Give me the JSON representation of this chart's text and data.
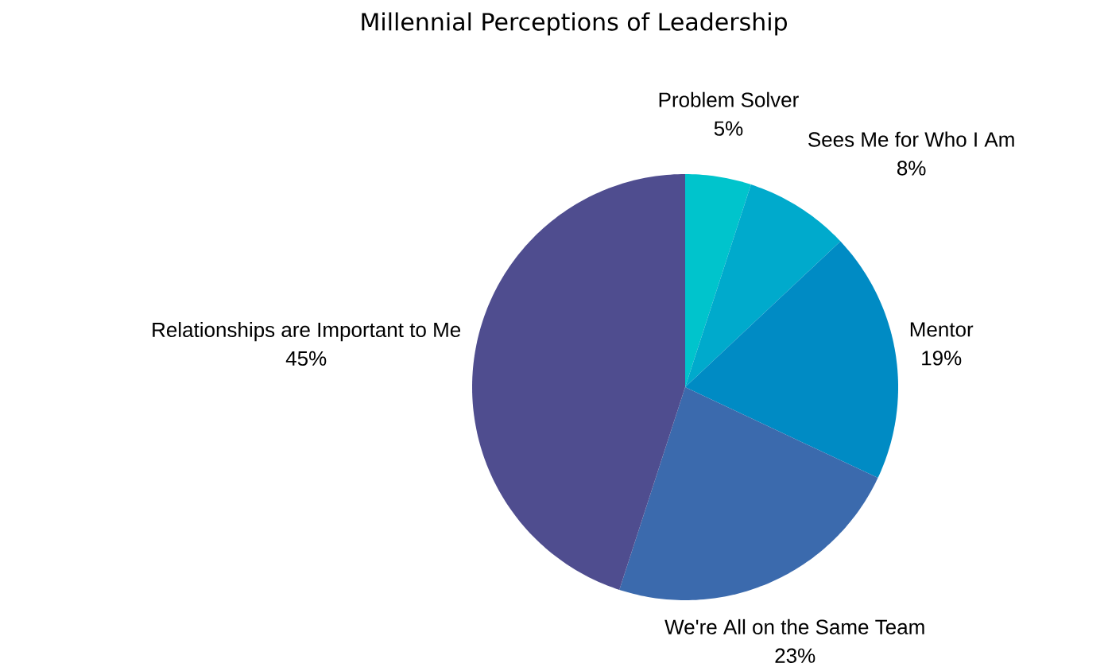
{
  "chart_data": {
    "type": "pie",
    "title": "Millennial Perceptions of Leadership",
    "categories": [
      "Problem Solver",
      "Sees Me for Who I Am",
      "Mentor",
      "We're All on the Same Team",
      "Relationships are Important to Me"
    ],
    "values": [
      5,
      8,
      19,
      23,
      45
    ],
    "colors": [
      "#00c4cc",
      "#00aacc",
      "#008bc4",
      "#3b6aad",
      "#4f4d8f"
    ],
    "value_labels": [
      "5%",
      "8%",
      "19%",
      "23%",
      "45%"
    ]
  }
}
